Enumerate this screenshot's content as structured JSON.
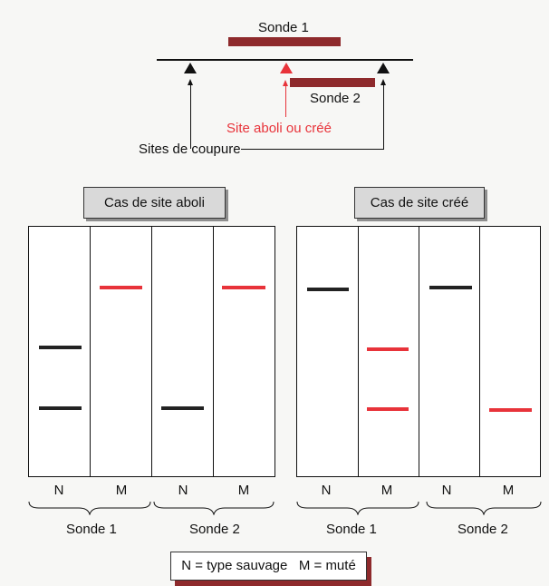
{
  "diagram": {
    "probe1_label": "Sonde 1",
    "probe2_label": "Sonde 2",
    "site_label": "Site aboli ou créé",
    "cut_sites_label": "Sites de coupure"
  },
  "panels": [
    {
      "title": "Cas de site aboli",
      "lanes": [
        "N",
        "M",
        "N",
        "M"
      ],
      "groups": [
        "Sonde 1",
        "Sonde 2"
      ]
    },
    {
      "title": "Cas de site créé",
      "lanes": [
        "N",
        "M",
        "N",
        "M"
      ],
      "groups": [
        "Sonde 1",
        "Sonde 2"
      ]
    }
  ],
  "legend": "N = type sauvage   M = muté",
  "colors": {
    "probe": "#8e2a2c",
    "mutant": "#e8333a",
    "wild": "#222222"
  }
}
